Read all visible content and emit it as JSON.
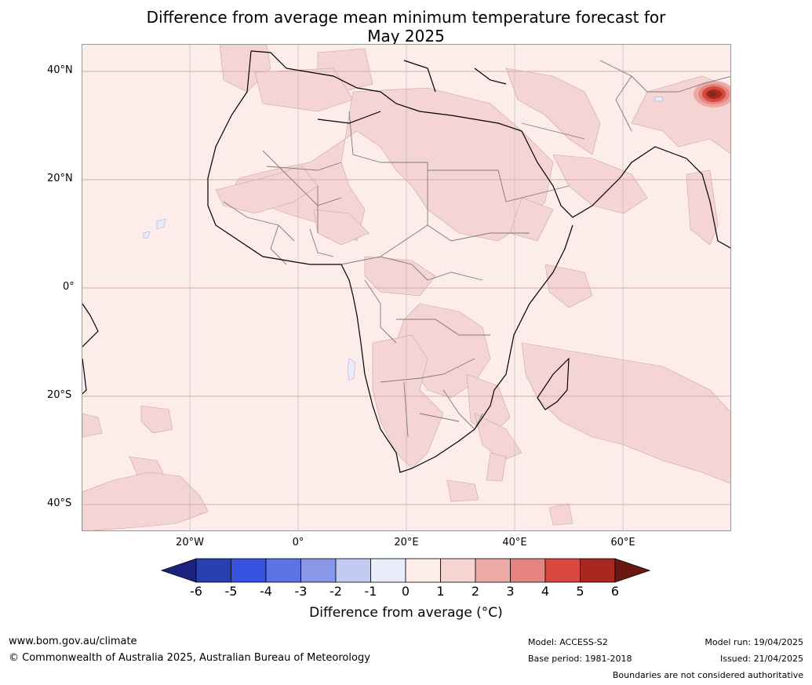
{
  "title": {
    "line1": "Difference from average mean minimum temperature forecast for",
    "line2": "May 2025"
  },
  "map": {
    "lat_labels": [
      "40°N",
      "20°N",
      "0°",
      "20°S",
      "40°S"
    ],
    "lon_labels": [
      "20°W",
      "0°",
      "20°E",
      "40°E",
      "60°E"
    ],
    "colors": {
      "background_anomaly_0_1": "#fcecea",
      "anomaly_1_2": "#f5d5d3",
      "hotspot": "#b52a24",
      "cool_patch": "#e8ecf8",
      "coastline": "#000000",
      "borders": "#7a7a7a",
      "gridlines": "#d7a8a8"
    }
  },
  "colorbar": {
    "ticks": [
      "-6",
      "-5",
      "-4",
      "-3",
      "-2",
      "-1",
      "0",
      "1",
      "2",
      "3",
      "4",
      "5",
      "6"
    ],
    "colors": [
      "#1a237e",
      "#283fb0",
      "#3551e0",
      "#5c73e4",
      "#8897e8",
      "#c3caf3",
      "#e9ecfa",
      "#fcecea",
      "#f5d4d2",
      "#ecaaa7",
      "#e68480",
      "#d9483f",
      "#a82721",
      "#6b1811"
    ],
    "label": "Difference from average (°C)"
  },
  "footer": {
    "url": "www.bom.gov.au/climate",
    "copyright": "© Commonwealth of Australia 2025, Australian Bureau of Meteorology",
    "model": "Model: ACCESS-S2",
    "base_period": "Base period: 1981-2018",
    "model_run": "Model run: 19/04/2025",
    "issued": "Issued: 21/04/2025",
    "disclaimer": "Boundaries are not considered authoritative"
  }
}
